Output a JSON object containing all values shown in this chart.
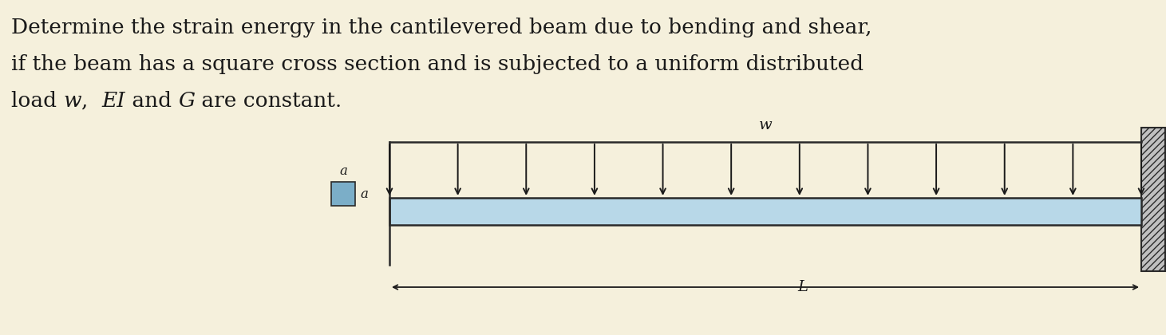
{
  "background_color": "#f5f0dc",
  "text_color": "#1a1a1a",
  "title_line1": "Determine the strain energy in the cantilevered beam due to bending and shear,",
  "title_line2": "if the beam has a square cross section and is subjected to a uniform distributed",
  "title_line3_parts": [
    {
      "text": "load ",
      "style": "normal"
    },
    {
      "text": "w",
      "style": "italic"
    },
    {
      "text": ",  ",
      "style": "normal"
    },
    {
      "text": "EI",
      "style": "italic"
    },
    {
      "text": " and ",
      "style": "normal"
    },
    {
      "text": "G",
      "style": "italic"
    },
    {
      "text": " are constant.",
      "style": "normal"
    }
  ],
  "beam_border_color": "#2a2a2a",
  "beam_fill_color": "#b8d8e8",
  "wall_fill_color": "#c0c0c0",
  "arrow_color": "#1a1a1a",
  "num_arrows": 12,
  "load_label": "w",
  "dim_label": "L",
  "cross_sec_label_top": "a",
  "cross_sec_label_side": "a"
}
